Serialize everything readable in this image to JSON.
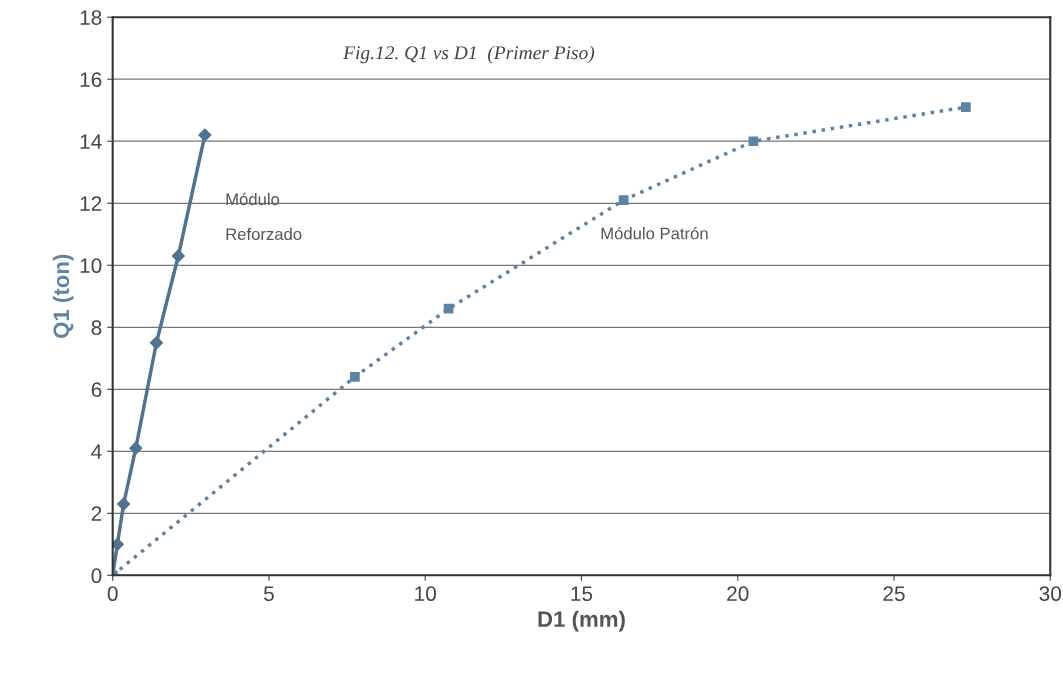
{
  "chart_data": {
    "type": "line",
    "title": "Fig.12. Q1 vs D1  (Primer Piso)",
    "xlabel": "D1 (mm)",
    "ylabel": "Q1 (ton)",
    "series": [
      {
        "color": "#4f7391",
        "marker": "diamond",
        "line_style": "solid",
        "x": [
          0,
          0.15,
          0.35,
          0.74,
          1.4,
          2.1,
          2.95
        ],
        "values": [
          0,
          1.0,
          2.3,
          4.1,
          7.5,
          10.3,
          14.2
        ]
      },
      {
        "color": "#5d84a3",
        "marker": "square",
        "line_style": "dotted",
        "x": [
          0,
          7.75,
          10.75,
          16.35,
          20.5,
          27.3
        ],
        "values": [
          0,
          6.4,
          8.6,
          12.1,
          14.0,
          15.1
        ]
      }
    ],
    "annotations": [
      "Módulo\nReforzado",
      "Módulo Patrón"
    ],
    "xlim": [
      0,
      30
    ],
    "xticks": [
      0,
      5,
      10,
      15,
      20,
      25,
      30
    ],
    "ylim": [
      0,
      18
    ],
    "yticks": [
      0,
      2,
      4,
      6,
      8,
      10,
      12,
      14,
      16,
      18
    ],
    "grid": "y"
  }
}
